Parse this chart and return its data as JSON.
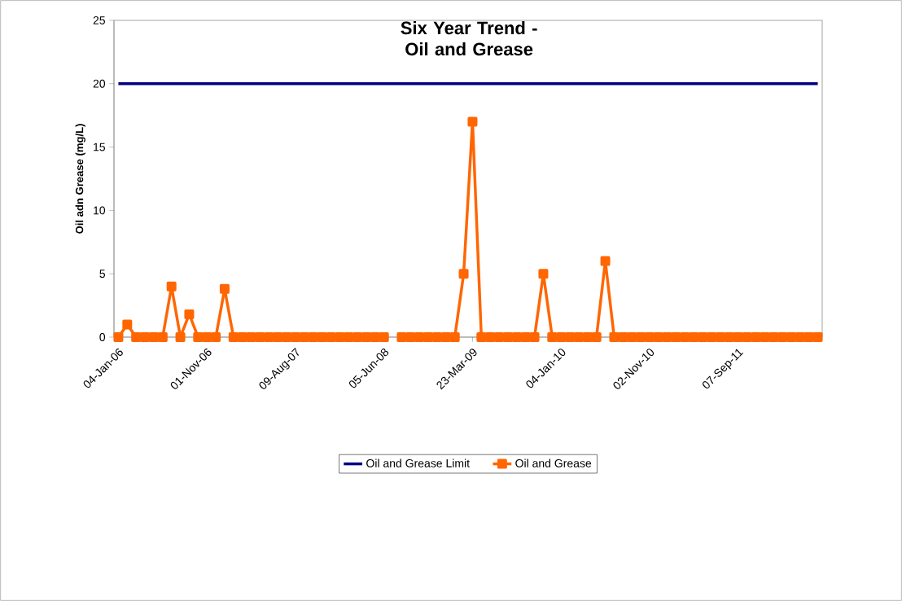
{
  "chart_data": {
    "type": "line",
    "title": "Six Year Trend - Oil and Grease",
    "ylabel": "Oil adn Grease (mg/L)",
    "categories": [
      "04-Jan-06",
      null,
      null,
      null,
      null,
      null,
      null,
      null,
      null,
      null,
      "01-Nov-06",
      null,
      null,
      null,
      null,
      null,
      null,
      null,
      null,
      null,
      "09-Aug-07",
      null,
      null,
      null,
      null,
      null,
      null,
      null,
      null,
      null,
      "05-Jun-08",
      null,
      null,
      null,
      null,
      null,
      null,
      null,
      null,
      null,
      "23-Mar-09",
      null,
      null,
      null,
      null,
      null,
      null,
      null,
      null,
      null,
      "04-Jan-10",
      null,
      null,
      null,
      null,
      null,
      null,
      null,
      null,
      null,
      "02-Nov-10",
      null,
      null,
      null,
      null,
      null,
      null,
      null,
      null,
      null,
      "07-Sep-11",
      null,
      null,
      null,
      null,
      null,
      null,
      null,
      null,
      null
    ],
    "series": [
      {
        "name": "Oil and Grease Limit",
        "color": "#000080",
        "marker": "none",
        "values": [
          20,
          20,
          20,
          20,
          20,
          20,
          20,
          20,
          20,
          20,
          20,
          20,
          20,
          20,
          20,
          20,
          20,
          20,
          20,
          20,
          20,
          20,
          20,
          20,
          20,
          20,
          20,
          20,
          20,
          20,
          20,
          20,
          20,
          20,
          20,
          20,
          20,
          20,
          20,
          20,
          20,
          20,
          20,
          20,
          20,
          20,
          20,
          20,
          20,
          20,
          20,
          20,
          20,
          20,
          20,
          20,
          20,
          20,
          20,
          20,
          20,
          20,
          20,
          20,
          20,
          20,
          20,
          20,
          20,
          20,
          20,
          20,
          20,
          20,
          20,
          20,
          20,
          20,
          20,
          20
        ]
      },
      {
        "name": "Oil and Grease",
        "color": "#ff6600",
        "marker": "square",
        "values": [
          0,
          1,
          0,
          0,
          0,
          0,
          4,
          0,
          1.8,
          0,
          0,
          0,
          3.8,
          0,
          0,
          0,
          0,
          0,
          0,
          0,
          0,
          0,
          0,
          0,
          0,
          0,
          0,
          0,
          0,
          0,
          0,
          null,
          0,
          0,
          0,
          0,
          0,
          0,
          0,
          5,
          17,
          0,
          0,
          0,
          0,
          0,
          0,
          0,
          5,
          0,
          0,
          0,
          0,
          0,
          0,
          6,
          0,
          0,
          0,
          0,
          0,
          0,
          0,
          0,
          0,
          0,
          0,
          0,
          0,
          0,
          0,
          0,
          0,
          0,
          0,
          0,
          0,
          0,
          0,
          0
        ]
      }
    ],
    "ylim": [
      0,
      25
    ],
    "yticks": [
      0,
      5,
      10,
      15,
      20,
      25
    ],
    "legend": "bottom",
    "line_style": "solid"
  }
}
